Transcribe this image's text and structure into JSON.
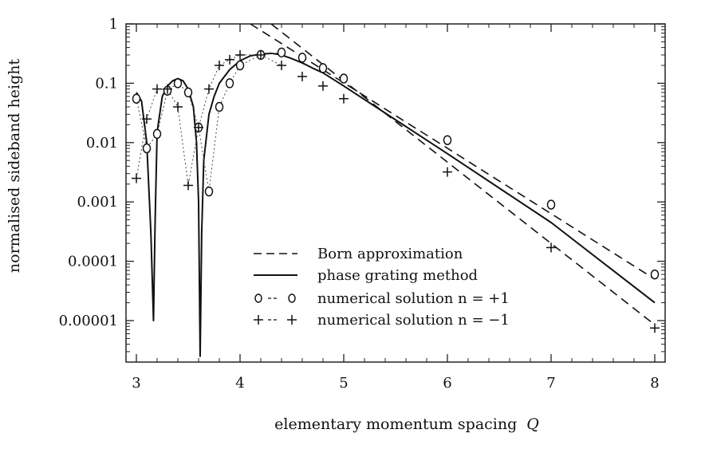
{
  "chart_data": {
    "type": "line",
    "title": "",
    "xlabel": "elementary momentum spacing",
    "xlabel_symbol": "Q",
    "ylabel": "normalised sideband height",
    "xlim": [
      2.9,
      8.1
    ],
    "ylim": [
      2e-06,
      1
    ],
    "yscale": "log",
    "grid": false,
    "legend_position": "bottom-center",
    "x_ticks": [
      "3",
      "4",
      "5",
      "6",
      "7",
      "8"
    ],
    "y_ticks": [
      "1",
      "0.1",
      "0.01",
      "0.001",
      "0.0001",
      "0.00001"
    ],
    "x_tick_values": [
      3,
      4,
      5,
      6,
      7,
      8
    ],
    "y_tick_values": [
      1,
      0.1,
      0.01,
      0.001,
      0.0001,
      1e-05
    ],
    "series": [
      {
        "name": "Born approximation",
        "style": "dashed",
        "lines": [
          {
            "x": [
              4.1,
              8.0
            ],
            "y": [
              1.0,
              5e-05
            ]
          },
          {
            "x": [
              4.3,
              8.0
            ],
            "y": [
              1.0,
              8.5e-06
            ]
          }
        ]
      },
      {
        "name": "phase grating method",
        "style": "solid",
        "x": [
          3.0,
          3.05,
          3.1,
          3.14,
          3.165,
          3.18,
          3.2,
          3.25,
          3.3,
          3.35,
          3.4,
          3.45,
          3.5,
          3.55,
          3.58,
          3.6,
          3.615,
          3.63,
          3.65,
          3.7,
          3.75,
          3.8,
          3.9,
          4.0,
          4.1,
          4.2,
          4.3,
          4.4,
          4.5,
          4.6,
          4.7,
          4.8,
          5.0,
          6.0,
          7.0,
          8.0
        ],
        "y": [
          0.07,
          0.05,
          0.01,
          0.0003,
          1e-05,
          0.0004,
          0.015,
          0.06,
          0.09,
          0.11,
          0.12,
          0.11,
          0.08,
          0.04,
          0.01,
          0.001,
          2.5e-06,
          0.0003,
          0.005,
          0.03,
          0.06,
          0.1,
          0.17,
          0.24,
          0.29,
          0.31,
          0.32,
          0.3,
          0.26,
          0.22,
          0.18,
          0.15,
          0.09,
          0.0065,
          0.00045,
          2e-05
        ]
      },
      {
        "name": "numerical solution n = +1",
        "style": "markers-o",
        "x": [
          3.0,
          3.1,
          3.2,
          3.3,
          3.4,
          3.5,
          3.6,
          3.7,
          3.8,
          3.9,
          4.0,
          4.2,
          4.4,
          4.6,
          4.8,
          5.0,
          6.0,
          7.0,
          8.0
        ],
        "y": [
          0.055,
          0.008,
          0.014,
          0.075,
          0.1,
          0.07,
          0.018,
          0.0015,
          0.04,
          0.1,
          0.2,
          0.3,
          0.33,
          0.27,
          0.18,
          0.12,
          0.011,
          0.0009,
          6e-05
        ]
      },
      {
        "name": "numerical solution n = −1",
        "style": "markers-plus",
        "x": [
          3.0,
          3.1,
          3.2,
          3.3,
          3.4,
          3.5,
          3.6,
          3.7,
          3.8,
          3.9,
          4.0,
          4.2,
          4.4,
          4.6,
          4.8,
          5.0,
          6.0,
          7.0,
          8.0
        ],
        "y": [
          0.0025,
          0.025,
          0.08,
          0.08,
          0.04,
          0.0019,
          0.018,
          0.08,
          0.2,
          0.25,
          0.3,
          0.3,
          0.2,
          0.13,
          0.09,
          0.055,
          0.0032,
          0.00017,
          7.5e-06
        ]
      }
    ],
    "legend": {
      "entries": [
        {
          "label": "Born approximation",
          "symbol": "dashed-line"
        },
        {
          "label": "phase grating method",
          "symbol": "solid-line"
        },
        {
          "label": "numerical solution n = +1",
          "symbol": "circle-markers"
        },
        {
          "label": "numerical solution n = −1",
          "symbol": "plus-markers"
        }
      ]
    }
  }
}
